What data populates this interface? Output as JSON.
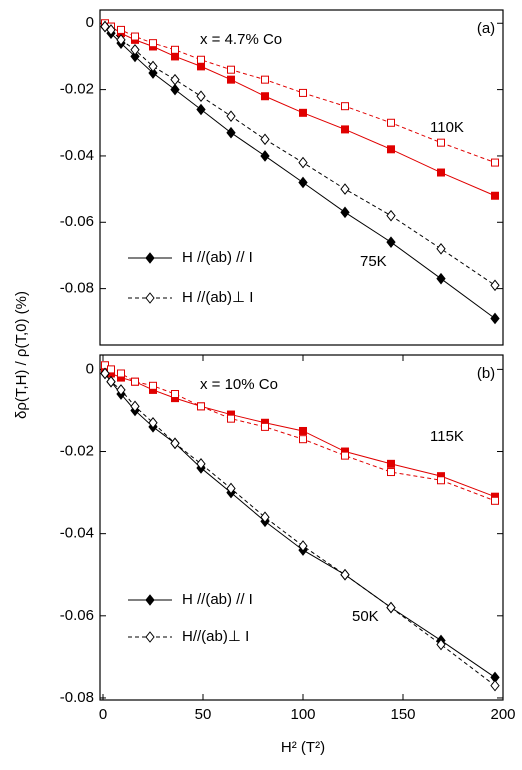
{
  "chart_data": [
    {
      "type": "scatter",
      "title": "x = 4.7% Co",
      "panel_label": "(a)",
      "ylabel": "δρ(T,H) / ρ(T,0)  (%)",
      "xlim": [
        -1.5,
        200
      ],
      "ylim": [
        -0.097,
        0.004
      ],
      "yticks": [
        0,
        -0.02,
        -0.04,
        -0.06,
        -0.08
      ],
      "x": [
        1,
        4,
        9,
        16,
        25,
        36,
        49,
        64,
        81,
        100,
        121,
        144,
        169,
        196
      ],
      "series": [
        {
          "color": "#e00000",
          "marker": "square",
          "filled": true,
          "dashed": false,
          "values": [
            -0.0003,
            -0.001,
            -0.003,
            -0.005,
            -0.007,
            -0.01,
            -0.013,
            -0.017,
            -0.022,
            -0.027,
            -0.032,
            -0.038,
            -0.045,
            -0.052
          ]
        },
        {
          "color": "#e00000",
          "marker": "square",
          "filled": false,
          "dashed": true,
          "values": [
            0.0,
            -0.001,
            -0.002,
            -0.004,
            -0.006,
            -0.008,
            -0.011,
            -0.014,
            -0.017,
            -0.021,
            -0.025,
            -0.03,
            -0.036,
            -0.042
          ]
        },
        {
          "name": "H //(ab) // I",
          "color": "#000000",
          "marker": "diamond",
          "filled": true,
          "dashed": false,
          "values": [
            -0.001,
            -0.003,
            -0.006,
            -0.01,
            -0.015,
            -0.02,
            -0.026,
            -0.033,
            -0.04,
            -0.048,
            -0.057,
            -0.066,
            -0.077,
            -0.089
          ]
        },
        {
          "name": "H //(ab)⊥ I",
          "color": "#000000",
          "marker": "diamond",
          "filled": false,
          "dashed": true,
          "values": [
            -0.001,
            -0.002,
            -0.005,
            -0.008,
            -0.013,
            -0.017,
            -0.022,
            -0.028,
            -0.035,
            -0.042,
            -0.05,
            -0.058,
            -0.068,
            -0.079
          ]
        }
      ],
      "annotations": [
        {
          "text": "110K",
          "color": "#e00000"
        },
        {
          "text": "75K",
          "color": "#000000"
        }
      ]
    },
    {
      "type": "scatter",
      "title": "x = 10% Co",
      "panel_label": "(b)",
      "xlabel": "H² (T²)",
      "xlim": [
        -1.5,
        200
      ],
      "xticks": [
        0,
        50,
        100,
        150,
        200
      ],
      "ylim": [
        -0.0805,
        0.0035
      ],
      "yticks": [
        0,
        -0.02,
        -0.04,
        -0.06,
        -0.08
      ],
      "x": [
        1,
        4,
        9,
        16,
        25,
        36,
        49,
        64,
        81,
        100,
        121,
        144,
        169,
        196
      ],
      "series": [
        {
          "color": "#e00000",
          "marker": "square",
          "filled": true,
          "dashed": false,
          "values": [
            0.0,
            -0.001,
            -0.002,
            -0.003,
            -0.005,
            -0.007,
            -0.009,
            -0.011,
            -0.013,
            -0.015,
            -0.02,
            -0.023,
            -0.026,
            -0.031
          ]
        },
        {
          "color": "#e00000",
          "marker": "square",
          "filled": false,
          "dashed": true,
          "values": [
            0.001,
            0.0,
            -0.001,
            -0.003,
            -0.004,
            -0.006,
            -0.009,
            -0.012,
            -0.014,
            -0.017,
            -0.021,
            -0.025,
            -0.027,
            -0.032
          ]
        },
        {
          "name": "H //(ab) // I",
          "color": "#000000",
          "marker": "diamond",
          "filled": true,
          "dashed": false,
          "values": [
            -0.001,
            -0.003,
            -0.006,
            -0.01,
            -0.014,
            -0.018,
            -0.024,
            -0.03,
            -0.037,
            -0.044,
            -0.05,
            -0.058,
            -0.066,
            -0.075
          ]
        },
        {
          "name": "H//(ab)⊥ I",
          "color": "#000000",
          "marker": "diamond",
          "filled": false,
          "dashed": true,
          "values": [
            -0.001,
            -0.003,
            -0.005,
            -0.009,
            -0.013,
            -0.018,
            -0.023,
            -0.029,
            -0.036,
            -0.043,
            -0.05,
            -0.058,
            -0.067,
            -0.077
          ]
        }
      ],
      "annotations": [
        {
          "text": "115K",
          "color": "#e00000"
        },
        {
          "text": "50K",
          "color": "#000000"
        }
      ]
    }
  ]
}
